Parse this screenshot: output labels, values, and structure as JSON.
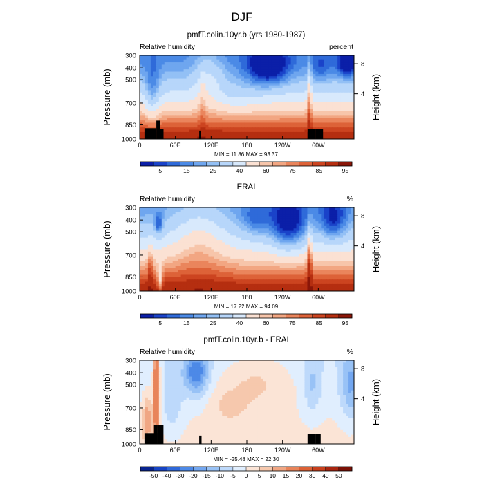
{
  "figure_title": "DJF",
  "chart_data": [
    {
      "type": "heatmap",
      "title": "pmfT.colin.10yr.b (yrs 1980-1987)",
      "left_label": "Relative humidity",
      "right_label": "percent",
      "ylabel": "Pressure (mb)",
      "ylabel_right": "Height (km)",
      "y_ticks": [
        "300",
        "400",
        "500",
        "700",
        "850",
        "1000"
      ],
      "x_ticks": [
        "0",
        "60E",
        "120E",
        "180",
        "120W",
        "60W"
      ],
      "height_ticks": [
        "8",
        "4"
      ],
      "stats": "MIN =   11.86   MAX =   93.37",
      "colorbar_labels": [
        "5",
        "15",
        "25",
        "40",
        "60",
        "75",
        "85",
        "95"
      ],
      "ylim": [
        1000,
        300
      ],
      "xlim": [
        0,
        360
      ],
      "min": 11.86,
      "max": 93.37
    },
    {
      "type": "heatmap",
      "title": "ERAI",
      "left_label": "Relative humidity",
      "right_label": "%",
      "ylabel": "Pressure (mb)",
      "ylabel_right": "Height (km)",
      "y_ticks": [
        "300",
        "400",
        "500",
        "700",
        "850",
        "1000"
      ],
      "x_ticks": [
        "0",
        "60E",
        "120E",
        "180",
        "120W",
        "60W"
      ],
      "height_ticks": [
        "8",
        "4"
      ],
      "stats": "MIN =   17.22   MAX =   94.09",
      "colorbar_labels": [
        "5",
        "15",
        "25",
        "40",
        "60",
        "75",
        "85",
        "95"
      ],
      "ylim": [
        1000,
        300
      ],
      "xlim": [
        0,
        360
      ],
      "min": 17.22,
      "max": 94.09
    },
    {
      "type": "heatmap",
      "title": "pmfT.colin.10yr.b - ERAI",
      "left_label": "Relative humidity",
      "right_label": "%",
      "ylabel": "Pressure (mb)",
      "ylabel_right": "Height (km)",
      "y_ticks": [
        "300",
        "400",
        "500",
        "700",
        "850",
        "1000"
      ],
      "x_ticks": [
        "0",
        "60E",
        "120E",
        "180",
        "120W",
        "60W"
      ],
      "height_ticks": [
        "8",
        "4"
      ],
      "stats": "MIN =  -25.48   MAX =   22.30",
      "colorbar_labels": [
        "-50",
        "-40",
        "-30",
        "-20",
        "-15",
        "-10",
        "-5",
        "0",
        "5",
        "10",
        "15",
        "20",
        "30",
        "40",
        "50"
      ],
      "ylim": [
        1000,
        300
      ],
      "xlim": [
        0,
        360
      ],
      "min": -25.48,
      "max": 22.3
    }
  ]
}
